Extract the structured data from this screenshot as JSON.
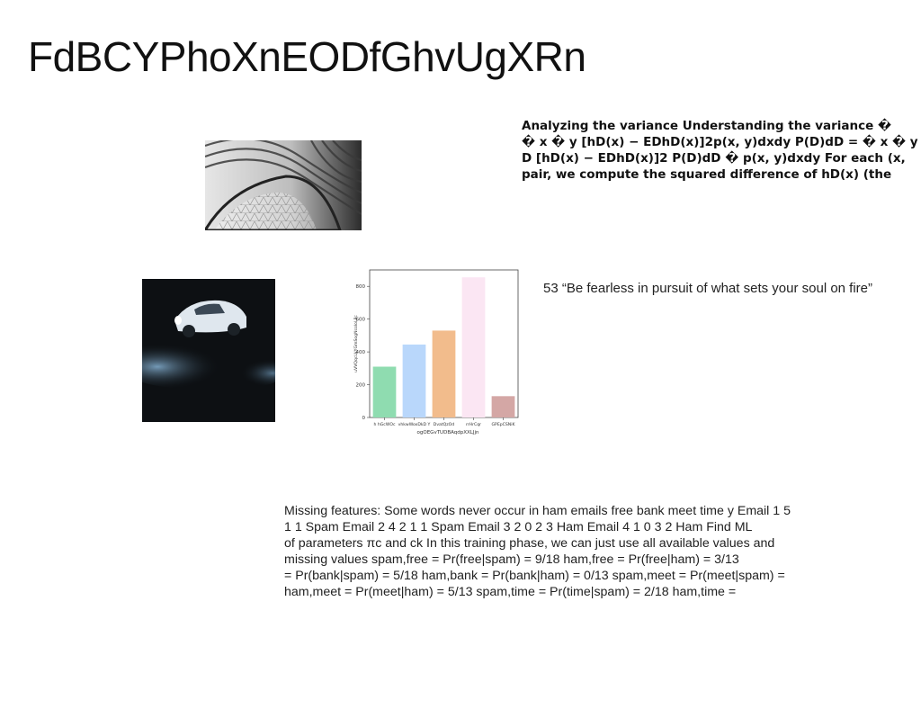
{
  "page": {
    "title": "FdBCYPhoXnEODfGhvUgXRn"
  },
  "images": {
    "architecture": {
      "icon": "architecture-photo",
      "subject": "curved striped ceiling with triangular glass lattice"
    },
    "car": {
      "icon": "car-photo",
      "subject": "classic sports car under spotlight"
    }
  },
  "bold_text": {
    "lines": [
      "Analyzing the variance Understanding the variance �",
      "� x � y [hD(x) − EDhD(x)]2p(x, y)dxdy P(D)dD = � x � y",
      "D [hD(x) − EDhD(x)]2 P(D)dD � p(x, y)dxdy For each (x,",
      "pair, we compute the squared difference of hD(x) (the"
    ]
  },
  "quote": {
    "text": "53 “Be fearless in pursuit of what sets your soul on fire”"
  },
  "notes": {
    "lines": [
      "Missing features: Some words never occur in ham emails free bank meet time y Email 1 5",
      "1 1 Spam Email 2 4 2 1 1 Spam Email 3 2 0 2 3 Ham Email 4 1 0 3 2 Ham Find ML",
      "of parameters πc and \u001fck In this training phase, we can just use all available values and",
      "missing values \u001fspam,free = Pr(free|spam) = 9/18 \u001fham,free = Pr(free|ham) = 3/13",
      "= Pr(bank|spam) = 5/18 \u001fham,bank = Pr(bank|ham) = 0/13 \u001fspam,meet = Pr(meet|spam) =",
      "\u001fham,meet = Pr(meet|ham) = 5/13 \u001fspam,time = Pr(time|spam) = 2/18 \u001fham,time ="
    ]
  },
  "chart_data": {
    "type": "bar",
    "categories": [
      "h hGcWOc",
      "vhkwWoxDkD Y",
      "DvatQzOd",
      "rrHrCqr",
      "GPEpCSNiK"
    ],
    "values": [
      310,
      445,
      530,
      855,
      130
    ],
    "colors": [
      "#8fdcb0",
      "#b9d7fb",
      "#f2bc8c",
      "#fbe6f3",
      "#d4a7a5"
    ],
    "xlabel": "ogOEGvTUDBAqdpXXLJjn",
    "ylabel": "uVVQqcLkYGmSogNcoloLPc",
    "ylim": [
      0,
      900
    ],
    "yticks": [
      0,
      200,
      400,
      600,
      800
    ],
    "grid": false,
    "title": ""
  }
}
